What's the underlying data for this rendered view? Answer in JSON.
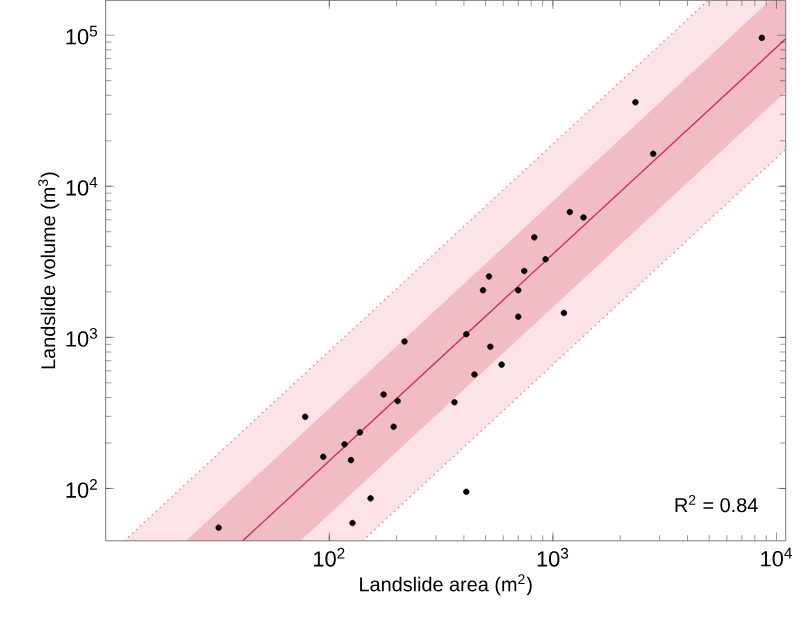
{
  "chart_data": {
    "type": "scatter",
    "xlabel": "Landslide area (m$^{2}$)",
    "ylabel": "Landslide volume (m$^{3}$)",
    "log": "xy",
    "grid": false,
    "xlim": [
      10,
      11000
    ],
    "ylim": [
      45,
      170000
    ],
    "xticks": [
      {
        "value": 100,
        "label": "10$^{2}$"
      },
      {
        "value": 1000,
        "label": "10$^{3}$"
      },
      {
        "value": 10000,
        "label": "10$^{4}$"
      }
    ],
    "yticks": [
      {
        "value": 100,
        "label": "10$^{2}$"
      },
      {
        "value": 1000,
        "label": "10$^{3}$"
      },
      {
        "value": 10000,
        "label": "10$^{4}$"
      },
      {
        "value": 100000,
        "label": "10$^{5}$"
      }
    ],
    "annotations": [
      "R$^{2}$ = 0.84"
    ],
    "series": [
      {
        "type": "line",
        "color": "#fbe3e7",
        "x": [
          12.1,
          141,
          4940,
          11000
        ],
        "values": [
          null,
          null,
          null,
          null
        ],
        "lower": [
          45,
          45,
          5880,
          17600
        ],
        "upper": [
          45,
          1300,
          170000,
          170000
        ]
      },
      {
        "type": "line",
        "color": "#f2bcc4",
        "x": [
          22.9,
          74.3,
          9350,
          11000
        ],
        "values": [
          null,
          null,
          null,
          null
        ],
        "lower": [
          45,
          45,
          33900,
          42300
        ],
        "upper": [
          45,
          225,
          170000,
          170000
        ]
      },
      {
        "type": "line",
        "color": "#e0808e",
        "line_style": "dotted",
        "marker": "none",
        "x": [
          12.1,
          4940
        ],
        "values": [
          45,
          170000
        ]
      },
      {
        "type": "line",
        "color": "#e0808e",
        "line_style": "dotted",
        "marker": "none",
        "x": [
          141,
          11000
        ],
        "values": [
          45,
          17600
        ]
      },
      {
        "type": "line",
        "color": "#c8384e",
        "line_style": "solid",
        "marker": "none",
        "x": [
          41,
          11000
        ],
        "values": [
          45,
          94600
        ]
      },
      {
        "color": "#000000",
        "marker": "circle",
        "x": [
          8600,
          2340,
          2810,
          1190,
          1370,
          826,
          927,
          518,
          487,
          745,
          700,
          700,
          1120,
          410,
          217,
          525,
          590,
          446,
          363,
          175,
          202,
          194,
          78,
          137,
          117,
          94,
          125,
          153,
          410,
          127,
          32
        ],
        "values": [
          96000,
          36000,
          16400,
          6750,
          6220,
          4590,
          3290,
          2530,
          2050,
          2750,
          2050,
          1370,
          1450,
          1050,
          940,
          867,
          660,
          568,
          372,
          419,
          379,
          256,
          298,
          235,
          196,
          162,
          154,
          86,
          95,
          59,
          55
        ]
      }
    ]
  }
}
